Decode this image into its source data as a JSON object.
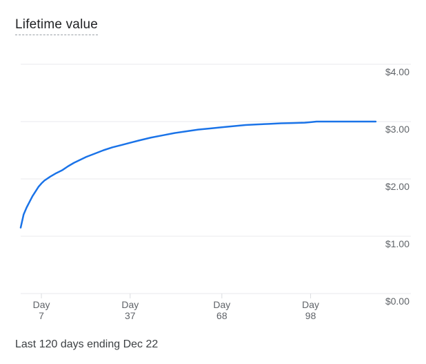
{
  "card": {
    "title": "Lifetime value",
    "footer": "Last 120 days ending Dec 22"
  },
  "colors": {
    "line": "#1a73e8",
    "grid": "#e8eaed",
    "tick_text": "#5f6368"
  },
  "chart_data": {
    "type": "line",
    "title": "Lifetime value",
    "xlabel": "",
    "ylabel": "",
    "ylim": [
      0,
      4
    ],
    "xlim": [
      1,
      120
    ],
    "y_ticks": [
      {
        "value": 0,
        "label": "$0.00"
      },
      {
        "value": 1,
        "label": "$1.00"
      },
      {
        "value": 2,
        "label": "$2.00"
      },
      {
        "value": 3,
        "label": "$3.00"
      },
      {
        "value": 4,
        "label": "$4.00"
      }
    ],
    "x_ticks": [
      {
        "value": 7,
        "label_top": "Day",
        "label_bottom": "7"
      },
      {
        "value": 37,
        "label_top": "Day",
        "label_bottom": "37"
      },
      {
        "value": 68,
        "label_top": "Day",
        "label_bottom": "68"
      },
      {
        "value": 98,
        "label_top": "Day",
        "label_bottom": "98"
      }
    ],
    "grid": true,
    "series": [
      {
        "x": [
          0,
          1,
          2,
          3,
          4,
          5,
          6,
          7,
          8,
          10,
          12,
          14,
          16,
          18,
          20,
          22,
          25,
          28,
          31,
          34,
          37,
          40,
          44,
          48,
          52,
          56,
          60,
          64,
          68,
          72,
          76,
          80,
          84,
          88,
          92,
          96,
          98,
          100,
          104,
          108,
          112,
          116,
          120
        ],
        "y": [
          1.15,
          1.38,
          1.5,
          1.6,
          1.7,
          1.78,
          1.86,
          1.92,
          1.97,
          2.04,
          2.1,
          2.15,
          2.22,
          2.28,
          2.33,
          2.38,
          2.44,
          2.5,
          2.55,
          2.59,
          2.63,
          2.67,
          2.72,
          2.76,
          2.8,
          2.83,
          2.86,
          2.88,
          2.9,
          2.92,
          2.94,
          2.95,
          2.96,
          2.97,
          2.975,
          2.98,
          2.99,
          3.0,
          3.0,
          3.0,
          3.0,
          3.0,
          3.0
        ]
      }
    ]
  }
}
